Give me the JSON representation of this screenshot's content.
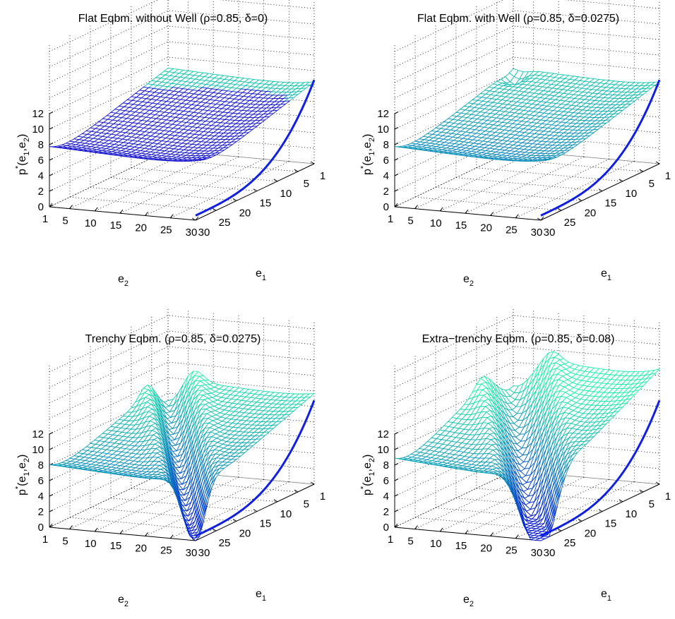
{
  "chart_data": [
    {
      "type": "surface",
      "title": "Flat Eqbm. without Well (ρ=0.85, δ=0)",
      "xlabel": {
        "main": "e",
        "sub": "1"
      },
      "ylabel": {
        "main": "e",
        "sub": "2"
      },
      "zlabel": {
        "pre": "p",
        "sup": "*",
        "open": "(e",
        "sub1": "1",
        "mid": ",e",
        "sub2": "2",
        "close": ")"
      },
      "x_range": [
        1,
        30
      ],
      "y_range": [
        1,
        30
      ],
      "zlim": [
        0,
        12
      ],
      "x_ticks": [
        "1",
        "5",
        "10",
        "15",
        "20",
        "25",
        "30"
      ],
      "y_ticks": [
        "1",
        "5",
        "10",
        "15",
        "20",
        "25",
        "30"
      ],
      "z_ticks": [
        "0",
        "2",
        "4",
        "6",
        "8",
        "10",
        "12"
      ],
      "grid": true,
      "surface": {
        "base_far": 10.6,
        "base_near": 5.2,
        "diag_bump": 0.0,
        "edge_e2_30": 7.4,
        "edge_e1_30": 9.6,
        "trench_depth": 0,
        "trench_width": 0,
        "well": false
      },
      "curve": {
        "e1_at_start": 30,
        "z_at_start": 0.6,
        "z_at_end": 10.8
      }
    },
    {
      "type": "surface",
      "title": "Flat Eqbm. with Well (ρ=0.85, δ=0.0275)",
      "xlabel": {
        "main": "e",
        "sub": "1"
      },
      "ylabel": {
        "main": "e",
        "sub": "2"
      },
      "zlabel": {
        "pre": "p",
        "sup": "*",
        "open": "(e",
        "sub1": "1",
        "mid": ",e",
        "sub2": "2",
        "close": ")"
      },
      "x_range": [
        1,
        30
      ],
      "y_range": [
        1,
        30
      ],
      "zlim": [
        0,
        12
      ],
      "x_ticks": [
        "1",
        "5",
        "10",
        "15",
        "20",
        "25",
        "30"
      ],
      "y_ticks": [
        "1",
        "5",
        "10",
        "15",
        "20",
        "25",
        "30"
      ],
      "z_ticks": [
        "0",
        "2",
        "4",
        "6",
        "8",
        "10",
        "12"
      ],
      "grid": true,
      "surface": {
        "base_far": 10.6,
        "base_near": 5.2,
        "diag_bump": 0.0,
        "edge_e2_30": 7.4,
        "edge_e1_30": 9.6,
        "trench_depth": 0,
        "trench_width": 0,
        "well": true
      },
      "curve": {
        "e1_at_start": 30,
        "z_at_start": 0.6,
        "z_at_end": 10.8
      }
    },
    {
      "type": "surface",
      "title": "Trenchy Eqbm. (ρ=0.85, δ=0.0275)",
      "xlabel": {
        "main": "e",
        "sub": "1"
      },
      "ylabel": {
        "main": "e",
        "sub": "2"
      },
      "zlabel": {
        "pre": "p",
        "sup": "*",
        "open": "(e",
        "sub1": "1",
        "mid": ",e",
        "sub2": "2",
        "close": ")"
      },
      "x_range": [
        1,
        30
      ],
      "y_range": [
        1,
        30
      ],
      "zlim": [
        0,
        12
      ],
      "x_ticks": [
        "1",
        "5",
        "10",
        "15",
        "20",
        "25",
        "30"
      ],
      "y_ticks": [
        "1",
        "5",
        "10",
        "15",
        "20",
        "25",
        "30"
      ],
      "z_ticks": [
        "0",
        "2",
        "4",
        "6",
        "8",
        "10",
        "12"
      ],
      "grid": true,
      "surface": {
        "base_far": 12.0,
        "base_near": 5.2,
        "diag_bump": 0.0,
        "edge_e2_30": 7.2,
        "edge_e1_30": 9.8,
        "trench_depth": 7.0,
        "trench_width": 2.2,
        "well": false
      },
      "curve": {
        "e1_at_start": 30,
        "z_at_start": 0.6,
        "z_at_end": 10.8
      }
    },
    {
      "type": "surface",
      "title": "Extra−trenchy Eqbm. (ρ=0.85, δ=0.08)",
      "xlabel": {
        "main": "e",
        "sub": "1"
      },
      "ylabel": {
        "main": "e",
        "sub": "2"
      },
      "zlabel": {
        "pre": "p",
        "sup": "*",
        "open": "(e",
        "sub1": "1",
        "mid": ",e",
        "sub2": "2",
        "close": ")"
      },
      "x_range": [
        1,
        30
      ],
      "y_range": [
        1,
        30
      ],
      "zlim": [
        0,
        12
      ],
      "x_ticks": [
        "1",
        "5",
        "10",
        "15",
        "20",
        "25",
        "30"
      ],
      "y_ticks": [
        "1",
        "5",
        "10",
        "15",
        "20",
        "25",
        "30"
      ],
      "z_ticks": [
        "0",
        "2",
        "4",
        "6",
        "8",
        "10",
        "12"
      ],
      "grid": true,
      "surface": {
        "base_far": 15.0,
        "base_near": 5.0,
        "diag_bump": 0.0,
        "edge_e2_30": 8.8,
        "edge_e1_30": 11.0,
        "trench_depth": 9.5,
        "trench_width": 3.2,
        "well": false
      },
      "curve": {
        "e1_at_start": 30,
        "z_at_start": 0.6,
        "z_at_end": 10.8
      }
    }
  ]
}
